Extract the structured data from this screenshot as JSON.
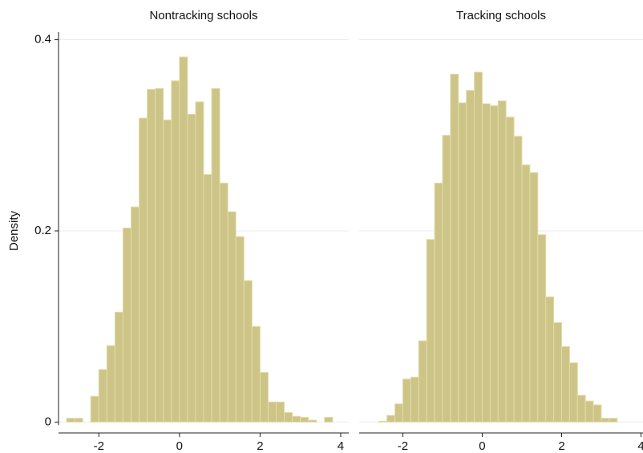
{
  "chart_data": [
    {
      "type": "histogram",
      "title": "Nontracking schools",
      "ylabel": "Density",
      "color": "#cdc487",
      "edge_color": "#e3dcaa",
      "bins": [
        -2.8,
        -2.6,
        -2.4,
        -2.2,
        -2.0,
        -1.8,
        -1.6,
        -1.4,
        -1.2,
        -1.0,
        -0.8,
        -0.6,
        -0.4,
        -0.2,
        0.0,
        0.2,
        0.4,
        0.6,
        0.8,
        1.0,
        1.2,
        1.4,
        1.6,
        1.8,
        2.0,
        2.2,
        2.4,
        2.6,
        2.8,
        3.0,
        3.2,
        3.4,
        3.6,
        3.8
      ],
      "values": [
        0.004,
        0.004,
        0,
        0.027,
        0.055,
        0.08,
        0.115,
        0.203,
        0.225,
        0.318,
        0.348,
        0.349,
        0.316,
        0.357,
        0.382,
        0.322,
        0.335,
        0.259,
        0.349,
        0.25,
        0.22,
        0.194,
        0.148,
        0.1,
        0.052,
        0.021,
        0.021,
        0.01,
        0.006,
        0.005,
        0.002,
        0,
        0.005,
        0.003
      ],
      "xlim": [
        -3,
        4.2
      ],
      "xticks": [
        -2,
        0,
        2,
        4
      ],
      "ylim": [
        -0.003,
        0.408
      ],
      "yticks": [
        0,
        0.2,
        0.4
      ],
      "grid": true
    },
    {
      "type": "histogram",
      "title": "Tracking schools",
      "color": "#cdc487",
      "edge_color": "#e3dcaa",
      "bins": [
        -2.6,
        -2.4,
        -2.2,
        -2.0,
        -1.8,
        -1.6,
        -1.4,
        -1.2,
        -1.0,
        -0.8,
        -0.6,
        -0.4,
        -0.2,
        0.0,
        0.2,
        0.4,
        0.6,
        0.8,
        1.0,
        1.2,
        1.4,
        1.6,
        1.8,
        2.0,
        2.2,
        2.4,
        2.6,
        2.8,
        3.0,
        3.2,
        3.4
      ],
      "values": [
        0.001,
        0.007,
        0.019,
        0.045,
        0.047,
        0.085,
        0.191,
        0.25,
        0.3,
        0.364,
        0.334,
        0.347,
        0.366,
        0.333,
        0.331,
        0.336,
        0.319,
        0.299,
        0.269,
        0.261,
        0.196,
        0.131,
        0.104,
        0.079,
        0.062,
        0.028,
        0.022,
        0.018,
        0.004,
        0.004,
        0.005
      ],
      "xlim": [
        -3.1,
        4.05
      ],
      "xticks": [
        -2,
        0,
        2,
        4
      ],
      "ylim": [
        -0.003,
        0.408
      ],
      "yticks": [
        0,
        0.2,
        0.4
      ],
      "grid": true
    }
  ]
}
